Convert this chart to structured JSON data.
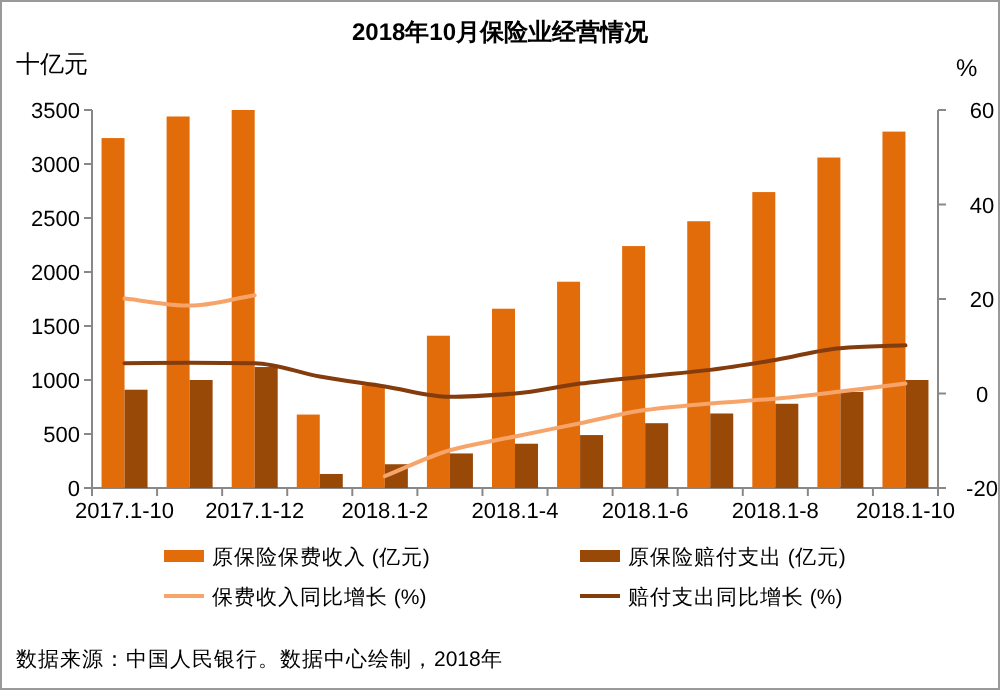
{
  "chart_data": {
    "type": "bar",
    "title": "2018年10月保险业经营情况",
    "ylabel": "十亿元",
    "y2label": "%",
    "categories": [
      "2017.1-10",
      null,
      "2017.1-12",
      null,
      "2018.1-2",
      null,
      "2018.1-4",
      null,
      "2018.1-6",
      null,
      "2018.1-8",
      null,
      "2018.1-10"
    ],
    "series": [
      {
        "name": "原保险保费收入 (亿元)",
        "color": "#e36c0a",
        "values": [
          3240,
          3440,
          3500,
          680,
          950,
          1410,
          1660,
          1910,
          2240,
          2470,
          2740,
          3060,
          3300
        ]
      },
      {
        "name": "原保险赔付支出 (亿元)",
        "color": "#984807",
        "values": [
          910,
          1000,
          1120,
          130,
          220,
          320,
          410,
          490,
          600,
          690,
          780,
          890,
          1000
        ]
      },
      {
        "name": "保费收入同比增长 (%)",
        "type": "line",
        "axis": "y2",
        "color": "#f7a46b",
        "values": [
          20.1,
          18.6,
          20.8,
          null,
          -17.5,
          -12,
          -9.1,
          -6.3,
          -3.5,
          -2.1,
          -1.1,
          0.4,
          2.1
        ]
      },
      {
        "name": "赔付支出同比增长 (%)",
        "type": "line",
        "axis": "y2",
        "color": "#843c0c",
        "values": [
          6.4,
          6.5,
          6.4,
          3.6,
          1.5,
          -0.7,
          0,
          2.1,
          3.6,
          5.0,
          7.1,
          9.6,
          10.2
        ]
      }
    ],
    "ylim": [
      0,
      3500
    ],
    "yticks": [
      0,
      500,
      1000,
      1500,
      2000,
      2500,
      3000,
      3500
    ],
    "y2lim": [
      -20,
      60
    ],
    "y2ticks": [
      -20,
      0,
      20,
      40,
      60
    ],
    "legend": "bottom",
    "annotations": [
      "数据来源：中国人民银行。数据中心绘制，2018年"
    ]
  }
}
